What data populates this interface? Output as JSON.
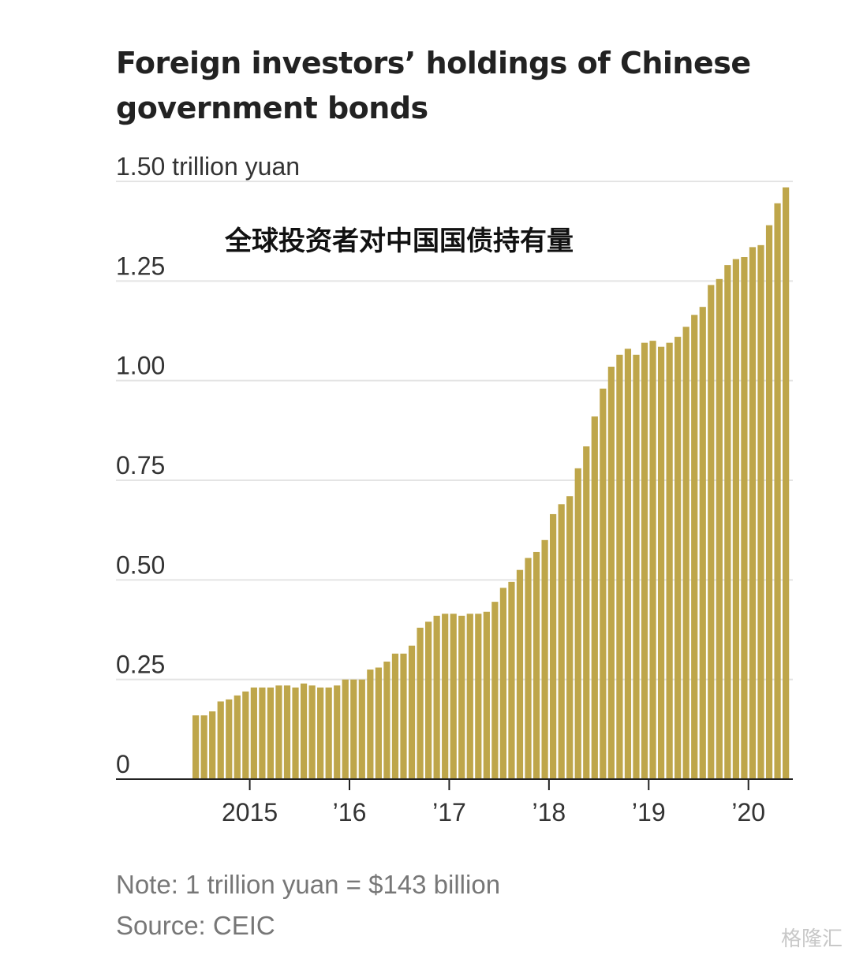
{
  "chart_data": {
    "type": "bar",
    "title": "Foreign investors’ holdings of Chinese government bonds",
    "annotation": "全球投资者对中国国债持有量",
    "ylabel": "",
    "xlabel": "",
    "y_unit_label": "1.50 trillion yuan",
    "ylim": [
      0,
      1.5
    ],
    "y_ticks": [
      {
        "value": 1.5,
        "label": "1.50 trillion yuan"
      },
      {
        "value": 1.25,
        "label": "1.25"
      },
      {
        "value": 1.0,
        "label": "1.00"
      },
      {
        "value": 0.75,
        "label": "0.75"
      },
      {
        "value": 0.5,
        "label": "0.50"
      },
      {
        "value": 0.25,
        "label": "0.25"
      },
      {
        "value": 0,
        "label": "0"
      }
    ],
    "x_ticks": [
      "2015",
      "’16",
      "’17",
      "’18",
      "’19",
      "’20"
    ],
    "grid": true,
    "start": "2014-06",
    "frequency": "monthly",
    "series": [
      {
        "values": [
          0.16,
          0.16,
          0.17,
          0.195,
          0.2,
          0.21,
          0.22,
          0.23,
          0.23,
          0.23,
          0.235,
          0.235,
          0.23,
          0.24,
          0.235,
          0.23,
          0.23,
          0.235,
          0.25,
          0.25,
          0.25,
          0.275,
          0.28,
          0.295,
          0.315,
          0.315,
          0.335,
          0.38,
          0.395,
          0.41,
          0.415,
          0.415,
          0.41,
          0.415,
          0.415,
          0.42,
          0.445,
          0.48,
          0.495,
          0.525,
          0.555,
          0.57,
          0.6,
          0.665,
          0.69,
          0.71,
          0.78,
          0.835,
          0.91,
          0.98,
          1.035,
          1.065,
          1.08,
          1.065,
          1.095,
          1.1,
          1.085,
          1.095,
          1.11,
          1.135,
          1.165,
          1.185,
          1.24,
          1.255,
          1.29,
          1.305,
          1.31,
          1.335,
          1.34,
          1.39,
          1.445,
          1.485
        ]
      }
    ]
  },
  "footer": {
    "note": "Note: 1 trillion yuan = $143 billion",
    "source": "Source: CEIC"
  },
  "watermark": "格隆汇"
}
